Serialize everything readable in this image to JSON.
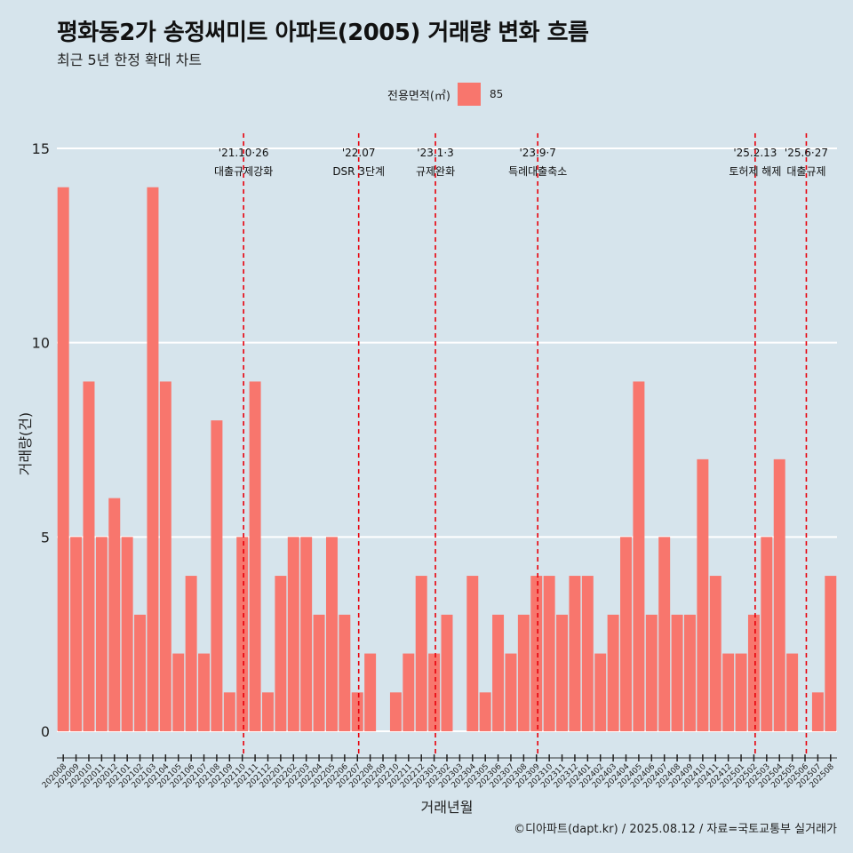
{
  "header": {
    "title": "평화동2가 송정써미트 아파트(2005) 거래량 변화 흐름",
    "subtitle": "최근 5년 한정 확대 차트"
  },
  "legend": {
    "title": "전용면적(㎡)",
    "items": [
      {
        "label": "85",
        "color": "#f8766d"
      }
    ]
  },
  "caption": "©디아파트(dapt.kr) / 2025.08.12 / 자료=국토교통부 실거래가",
  "chart_data": {
    "type": "bar",
    "xlabel": "거래년월",
    "ylabel": "거래량(건)",
    "ylim": [
      0,
      15
    ],
    "yticks": [
      0,
      5,
      10,
      15
    ],
    "bar_color": "#f8766d",
    "categories": [
      "202008",
      "202009",
      "202010",
      "202011",
      "202012",
      "202101",
      "202102",
      "202103",
      "202104",
      "202105",
      "202106",
      "202107",
      "202108",
      "202109",
      "202110",
      "202111",
      "202112",
      "202201",
      "202202",
      "202203",
      "202204",
      "202205",
      "202206",
      "202207",
      "202208",
      "202209",
      "202210",
      "202211",
      "202212",
      "202301",
      "202302",
      "202303",
      "202304",
      "202305",
      "202306",
      "202307",
      "202308",
      "202309",
      "202310",
      "202311",
      "202312",
      "202401",
      "202402",
      "202403",
      "202404",
      "202405",
      "202406",
      "202407",
      "202408",
      "202409",
      "202410",
      "202411",
      "202412",
      "202501",
      "202502",
      "202503",
      "202504",
      "202505",
      "202506",
      "202507",
      "202508"
    ],
    "series": [
      {
        "values": [
          14,
          5,
          9,
          5,
          6,
          5,
          3,
          14,
          9,
          2,
          4,
          2,
          8,
          1,
          5,
          9,
          1,
          4,
          5,
          5,
          3,
          5,
          3,
          1,
          2,
          0,
          1,
          2,
          4,
          2,
          3,
          0,
          4,
          1,
          3,
          2,
          3,
          4,
          4,
          3,
          4,
          4,
          2,
          3,
          5,
          9,
          3,
          5,
          3,
          3,
          7,
          4,
          2,
          2,
          3,
          5,
          7,
          2,
          0,
          1,
          4
        ]
      }
    ],
    "annotations": [
      {
        "category": "202110",
        "date": "'21.10·26",
        "label": "대출규제강화"
      },
      {
        "category": "202207",
        "date": "'22.07",
        "label": "DSR 3단계"
      },
      {
        "category": "202301",
        "date": "'23.1·3",
        "label": "규제완화"
      },
      {
        "category": "202309",
        "date": "'23.9·7",
        "label": "특례대출축소"
      },
      {
        "category": "202502",
        "date": "'25.2.13",
        "label": "토허제 해제"
      },
      {
        "category": "202506",
        "date": "'25.6·27",
        "label": "대출규제"
      }
    ]
  }
}
